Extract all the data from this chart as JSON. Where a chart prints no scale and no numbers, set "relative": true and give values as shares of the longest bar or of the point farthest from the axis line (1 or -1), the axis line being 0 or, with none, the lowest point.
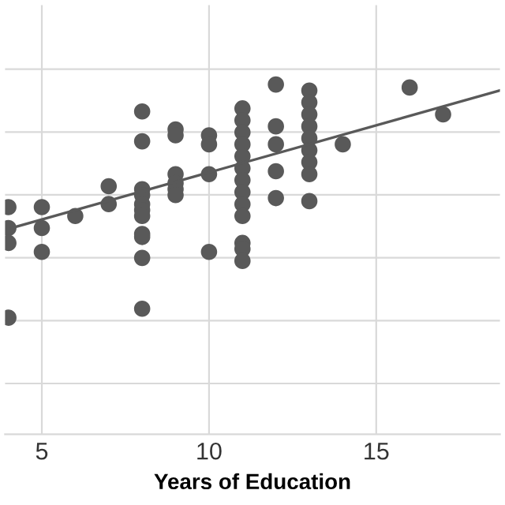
{
  "chart_data": {
    "type": "scatter",
    "xlabel": "Years of Education",
    "relative": true,
    "xlim": [
      3.9,
      18.7
    ],
    "xticks": [
      5,
      10,
      15
    ],
    "grid": true,
    "legend": false,
    "series": [
      {
        "color": "#595959",
        "marker": "circle",
        "x": [
          4,
          4,
          4,
          4,
          5,
          5,
          5,
          6,
          7,
          7,
          8,
          8,
          8,
          8,
          8,
          8,
          8,
          8,
          8,
          8,
          8,
          9,
          9,
          9,
          9,
          9,
          9,
          10,
          10,
          10,
          10,
          11,
          11,
          11,
          11,
          11,
          11,
          11,
          11,
          11,
          11,
          11,
          11,
          11,
          12,
          12,
          12,
          12,
          12,
          13,
          13,
          13,
          13,
          13,
          13,
          13,
          13,
          13,
          14,
          16,
          17
        ],
        "values": [
          0.59,
          0.52,
          0.47,
          0.22,
          0.59,
          0.52,
          0.44,
          0.56,
          0.66,
          0.6,
          0.91,
          0.81,
          0.65,
          0.63,
          0.6,
          0.58,
          0.56,
          0.5,
          0.49,
          0.42,
          0.25,
          0.85,
          0.83,
          0.7,
          0.67,
          0.65,
          0.63,
          0.83,
          0.8,
          0.7,
          0.44,
          0.92,
          0.88,
          0.84,
          0.8,
          0.76,
          0.72,
          0.68,
          0.64,
          0.6,
          0.56,
          0.47,
          0.45,
          0.41,
          1.0,
          0.86,
          0.8,
          0.71,
          0.62,
          0.98,
          0.94,
          0.9,
          0.86,
          0.82,
          0.78,
          0.74,
          0.7,
          0.61,
          0.8,
          0.99,
          0.9
        ]
      },
      {
        "type": "line",
        "color": "#595959",
        "marker": "none",
        "x": [
          4.1,
          18.7
        ],
        "values": [
          0.52,
          0.98
        ]
      }
    ]
  }
}
